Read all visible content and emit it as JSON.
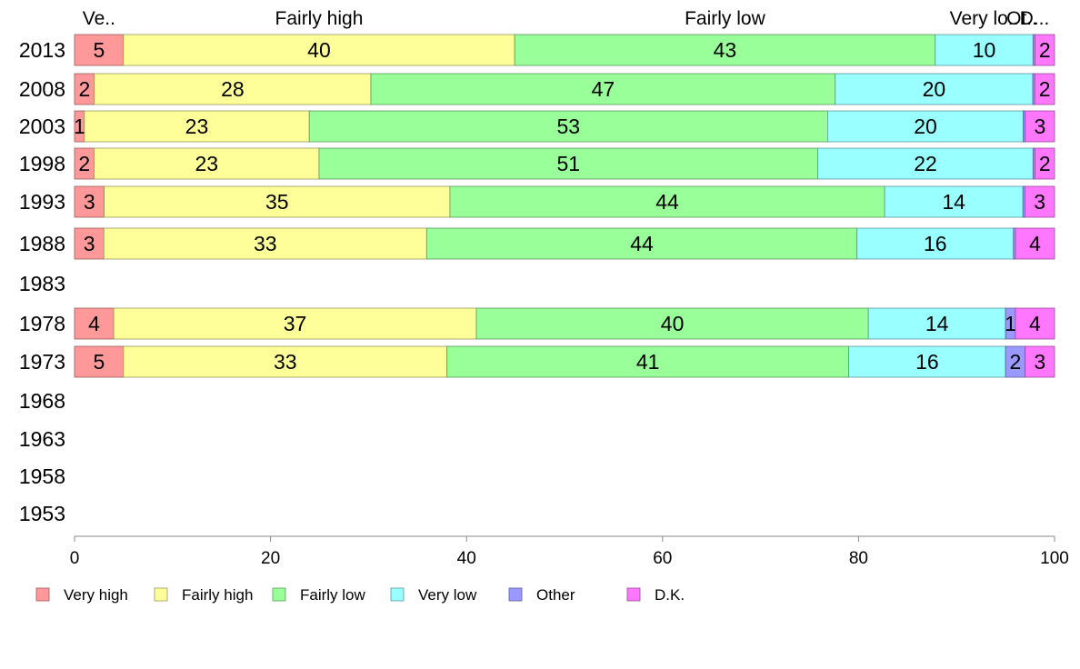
{
  "chart_data": {
    "type": "bar",
    "orientation": "horizontal",
    "stacked": true,
    "xlim": [
      0,
      100
    ],
    "x_ticks": [
      "0",
      "20",
      "40",
      "60",
      "80",
      "100"
    ],
    "grid": false,
    "legend_position": "bottom-left",
    "top_labels": [
      "Ve..",
      "Fairly high",
      "Fairly low",
      "Very lo..",
      "Ot..",
      "D..."
    ],
    "categories": [
      "2013",
      "2008",
      "2003",
      "1998",
      "1993",
      "1988",
      "1983",
      "1978",
      "1973",
      "1968",
      "1963",
      "1958",
      "1953"
    ],
    "series": [
      {
        "name": "Very high",
        "color": "#ff9999",
        "values": [
          5,
          2,
          1,
          2,
          3,
          3,
          null,
          4,
          5,
          null,
          null,
          null,
          null
        ],
        "labels": [
          "5",
          "2",
          "1",
          "2",
          "3",
          "3",
          "",
          "4",
          "5",
          "",
          "",
          "",
          ""
        ]
      },
      {
        "name": "Fairly high",
        "color": "#ffff99",
        "values": [
          40,
          28,
          23,
          23,
          35,
          33,
          null,
          37,
          33,
          null,
          null,
          null,
          null
        ],
        "labels": [
          "40",
          "28",
          "23",
          "23",
          "35",
          "33",
          "",
          "37",
          "33",
          "",
          "",
          "",
          ""
        ]
      },
      {
        "name": "Fairly low",
        "color": "#99ff99",
        "values": [
          43,
          47,
          53,
          51,
          44,
          44,
          null,
          40,
          41,
          null,
          null,
          null,
          null
        ],
        "labels": [
          "43",
          "47",
          "53",
          "51",
          "44",
          "44",
          "",
          "40",
          "41",
          "",
          "",
          "",
          ""
        ]
      },
      {
        "name": "Very low",
        "color": "#99ffff",
        "values": [
          10,
          20,
          20,
          22,
          14,
          16,
          null,
          14,
          16,
          null,
          null,
          null,
          null
        ],
        "labels": [
          "10",
          "20",
          "20",
          "22",
          "14",
          "16",
          "",
          "14",
          "16",
          "",
          "",
          "",
          ""
        ]
      },
      {
        "name": "Other",
        "color": "#9999ff",
        "values": [
          0.2,
          0.2,
          0.2,
          0.2,
          0.2,
          0.2,
          null,
          1,
          2,
          null,
          null,
          null,
          null
        ],
        "labels": [
          "",
          "",
          "",
          "",
          "",
          "",
          "",
          "1",
          "2",
          "",
          "",
          "",
          ""
        ]
      },
      {
        "name": "D.K.",
        "color": "#ff77ff",
        "values": [
          2,
          2,
          3,
          2,
          3,
          4,
          null,
          4,
          3,
          null,
          null,
          null,
          null
        ],
        "labels": [
          "2",
          "2",
          "3",
          "2",
          "3",
          "4",
          "",
          "4",
          "3",
          "",
          "",
          "",
          ""
        ]
      }
    ]
  }
}
